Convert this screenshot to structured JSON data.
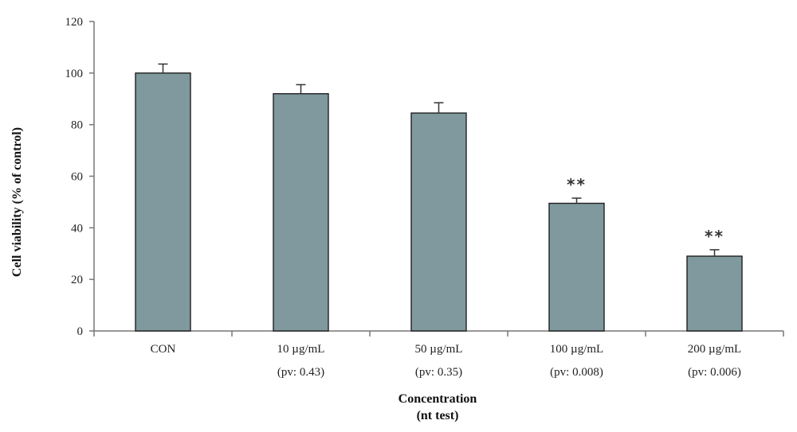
{
  "chart_data": {
    "type": "bar",
    "categories": [
      "CON",
      "10 µg/mL",
      "50 µg/mL",
      "100 µg/mL",
      "200 µg/mL"
    ],
    "pvalues": [
      "",
      "(pv: 0.43)",
      "(pv: 0.35)",
      "(pv: 0.008)",
      "(pv: 0.006)"
    ],
    "values": [
      100,
      92,
      84.5,
      49.5,
      29
    ],
    "errors": [
      3.5,
      3.5,
      4,
      2,
      2.5
    ],
    "significance": [
      "",
      "",
      "",
      "**",
      "**"
    ],
    "ylabel": "Cell viability (% of control)",
    "xlabel_line1": "Concentration",
    "xlabel_line2": "(nt test)",
    "ylim": [
      0,
      120
    ],
    "yticks": [
      0,
      20,
      40,
      60,
      80,
      100,
      120
    ],
    "bar_color": "#7f999e",
    "legend": "none",
    "grid": false
  }
}
